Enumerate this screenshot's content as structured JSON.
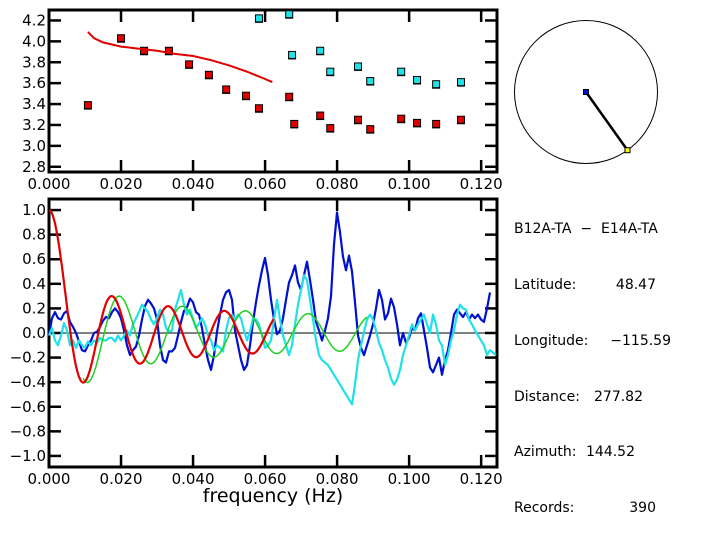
{
  "colors": {
    "red": "#e00000",
    "blue": "#0010d0",
    "cyan": "#20e0e8",
    "green": "#20d020",
    "axis": "#000000",
    "yellow": "#ffff00"
  },
  "chart_data": [
    {
      "type": "scatter",
      "title": "",
      "xlabel": "",
      "ylabel": "",
      "xlim": [
        0,
        0.1244
      ],
      "ylim": [
        2.75,
        4.3
      ],
      "x_ticks": [
        "0.000",
        "0.020",
        "0.040",
        "0.060",
        "0.080",
        "0.100",
        "0.120"
      ],
      "y_ticks": [
        "4.2",
        "4.0",
        "3.8",
        "3.6",
        "3.4",
        "3.2",
        "3.0",
        "2.8"
      ],
      "series": [
        {
          "name": "red-points",
          "color": "red",
          "x": [
            0.0108,
            0.02,
            0.0264,
            0.0333,
            0.0389,
            0.0444,
            0.0492,
            0.0547,
            0.0583,
            0.0667,
            0.0681,
            0.0753,
            0.0781,
            0.0858,
            0.0892,
            0.0978,
            0.1022,
            0.1075,
            0.1144
          ],
          "y": [
            3.39,
            4.03,
            3.91,
            3.91,
            3.78,
            3.68,
            3.54,
            3.48,
            3.36,
            3.47,
            3.21,
            3.29,
            3.17,
            3.25,
            3.16,
            3.26,
            3.22,
            3.21,
            3.25
          ]
        },
        {
          "name": "cyan-points",
          "color": "cyan",
          "x": [
            0.0583,
            0.0667,
            0.0675,
            0.0753,
            0.0781,
            0.0858,
            0.0892,
            0.0978,
            0.1022,
            0.1075,
            0.1144
          ],
          "y": [
            4.22,
            4.26,
            3.87,
            3.91,
            3.71,
            3.76,
            3.62,
            3.71,
            3.63,
            3.59,
            3.61
          ]
        },
        {
          "name": "red-curve",
          "color": "red",
          "kind": "line",
          "x": [
            0.0108,
            0.0125,
            0.015,
            0.0175,
            0.02,
            0.025,
            0.03,
            0.035,
            0.04,
            0.045,
            0.05,
            0.055,
            0.06,
            0.062
          ],
          "y": [
            4.09,
            4.03,
            3.99,
            3.97,
            3.95,
            3.93,
            3.91,
            3.88,
            3.86,
            3.82,
            3.77,
            3.71,
            3.64,
            3.61
          ]
        }
      ]
    },
    {
      "type": "line",
      "title": "",
      "xlabel": "frequency (Hz)",
      "ylabel": "",
      "xlim": [
        0,
        0.1244
      ],
      "ylim": [
        -1.09,
        1.09
      ],
      "x_ticks": [
        "0.000",
        "0.020",
        "0.040",
        "0.060",
        "0.080",
        "0.100",
        "0.120"
      ],
      "y_ticks": [
        "1.0",
        "0.8",
        "0.6",
        "0.4",
        "0.2",
        "0.0",
        "−0.2",
        "−0.4",
        "−0.6",
        "−0.8",
        "−1.0"
      ],
      "zero_line": true,
      "series": [
        {
          "name": "blue",
          "color": "blue",
          "x_start": 0,
          "x_step": 0.000833,
          "y": [
            -0.02,
            0.12,
            0.17,
            0.12,
            0.11,
            0.16,
            0.18,
            0.09,
            0.05,
            0,
            -0.07,
            -0.14,
            -0.15,
            -0.1,
            -0.06,
            0,
            0.01,
            0.05,
            0.1,
            0.13,
            0.12,
            0.17,
            0.2,
            0.17,
            0.12,
            0.02,
            -0.1,
            -0.18,
            -0.14,
            -0.11,
            -0.02,
            0.11,
            0.22,
            0.27,
            0.24,
            0.2,
            0.11,
            -0.1,
            -0.22,
            -0.24,
            -0.15,
            -0.15,
            -0.12,
            -0.02,
            0.09,
            0.18,
            0.21,
            0.28,
            0.25,
            0.17,
            0.15,
            0.04,
            -0.1,
            -0.22,
            -0.3,
            -0.18,
            0.01,
            0.15,
            0.27,
            0.33,
            0.35,
            0.27,
            0.02,
            -0.1,
            -0.22,
            -0.3,
            -0.26,
            -0.1,
            0.09,
            0.25,
            0.39,
            0.51,
            0.61,
            0.47,
            0.27,
            0.11,
            -0.01,
            0.02,
            0.12,
            0.27,
            0.41,
            0.47,
            0.55,
            0.41,
            0.35,
            0.47,
            0.58,
            0.43,
            0.27,
            0.09,
            0.02,
            -0.06,
            0.02,
            0.12,
            0.3,
            0.72,
            0.98,
            0.82,
            0.62,
            0.51,
            0.63,
            0.5,
            0.25,
            -0.02,
            -0.12,
            -0.18,
            -0.1,
            -0.02,
            0.07,
            0.2,
            0.35,
            0.27,
            0.11,
            0.16,
            0.28,
            0.21,
            0.07,
            -0.1,
            0,
            -0.08,
            -0.04,
            0.04,
            0.02,
            0.12,
            0.16,
            0.02,
            -0.12,
            -0.28,
            -0.32,
            -0.26,
            -0.2,
            -0.34,
            -0.22,
            -0.14,
            0,
            0.15,
            0.19,
            0.16,
            0.13,
            0.17,
            0.11,
            0.15,
            0.12,
            0.15,
            0.11,
            0.09,
            0.2,
            0.33
          ]
        },
        {
          "name": "cyan",
          "color": "cyan",
          "x_start": 0,
          "x_step": 0.000833,
          "y": [
            -0.02,
            0.04,
            -0.06,
            -0.1,
            -0.02,
            0.08,
            0.02,
            -0.1,
            -0.06,
            -0.12,
            -0.06,
            -0.1,
            -0.12,
            -0.07,
            -0.1,
            -0.06,
            -0.08,
            -0.04,
            -0.06,
            -0.06,
            -0.04,
            -0.04,
            -0.07,
            -0.02,
            -0.06,
            -0.02,
            0.02,
            -0.02,
            0.07,
            0.12,
            0.17,
            0.23,
            0.2,
            0.17,
            0.11,
            0.07,
            0.12,
            0.19,
            0.15,
            0.04,
            0.01,
            0.02,
            0.19,
            0.27,
            0.35,
            0.23,
            0.15,
            0.19,
            0.11,
            0.04,
            0.08,
            0.12,
            0.07,
            -0.02,
            -0.06,
            -0.14,
            -0.1,
            -0.12,
            -0.15,
            0.02,
            0.12,
            0.15,
            0.11,
            0.15,
            0.12,
            0.02,
            -0.06,
            0.01,
            0.12,
            0.11,
            0.07,
            -0.02,
            -0.12,
            -0.1,
            -0.06,
            0.11,
            0.27,
            0.11,
            -0.02,
            -0.1,
            -0.18,
            -0.1,
            0.07,
            0.23,
            0.35,
            0.47,
            0.43,
            0.27,
            0.11,
            -0.06,
            -0.18,
            -0.22,
            -0.24,
            -0.26,
            -0.3,
            -0.34,
            -0.38,
            -0.42,
            -0.46,
            -0.5,
            -0.54,
            -0.58,
            -0.42,
            -0.22,
            -0.1,
            0.01,
            0.11,
            0.15,
            0.11,
            0.02,
            -0.08,
            -0.14,
            -0.22,
            -0.28,
            -0.37,
            -0.42,
            -0.38,
            -0.3,
            -0.18,
            -0.1,
            -0.02,
            0.07,
            0.02,
            0.07,
            0.11,
            0.15,
            0.07,
            0.0,
            0.15,
            0.07,
            -0.06,
            -0.1,
            -0.26,
            -0.18,
            -0.06,
            0.02,
            0.15,
            0.23,
            0.2,
            0.19,
            0.11,
            0.07,
            0.02,
            -0.02,
            -0.06,
            -0.1,
            -0.18,
            -0.14,
            -0.16,
            -0.18,
            -0.02
          ]
        },
        {
          "name": "red",
          "color": "red",
          "kind": "bessel_j0",
          "scale": 403,
          "x_range": [
            0,
            0.0625
          ]
        },
        {
          "name": "green",
          "color": "green",
          "kind": "bessel_j0",
          "scale": 360,
          "x_range": [
            0.0095,
            0.0885
          ]
        }
      ]
    }
  ],
  "map": {
    "station_center_color": "blue",
    "station_edge_color": "yellow",
    "azimuth_deg": 144.52
  },
  "info": {
    "pair": "B12A-TA  −  E14A-TA",
    "rows": [
      {
        "label": "Latitude:",
        "value": "48.47"
      },
      {
        "label": "Longitude:",
        "value": "−115.59"
      },
      {
        "label": "Distance:",
        "value": "277.82"
      },
      {
        "label": "Azimuth:",
        "value": "144.52"
      },
      {
        "label": "Records:",
        "value": "390"
      }
    ]
  }
}
